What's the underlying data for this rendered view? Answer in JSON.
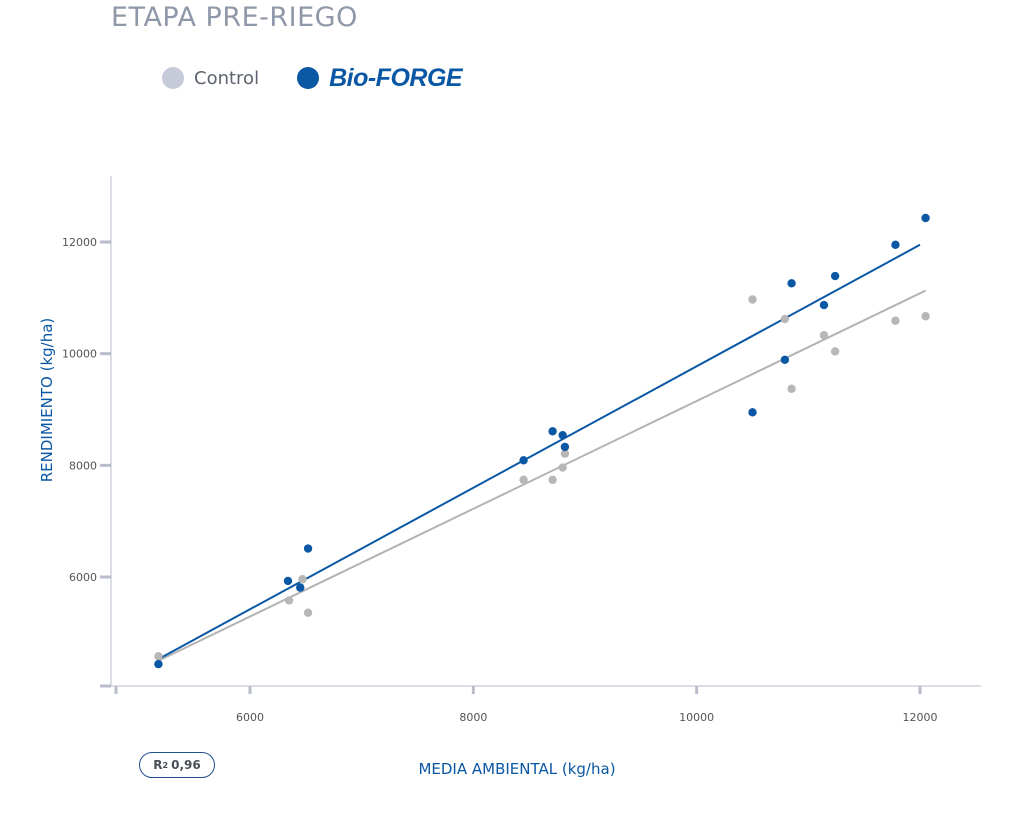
{
  "title": "ETAPA PRE-RIEGO",
  "legend": [
    {
      "label": "Control",
      "color": "#c7cad9"
    },
    {
      "label": "Bio-FORGE",
      "color": "#0a57a4"
    }
  ],
  "badge": {
    "label": "R",
    "sup": "2",
    "value": "0,96"
  },
  "colors": {
    "axis": "#b9bccb",
    "control_line": "#b3b3b3",
    "control_point": "#b7b7b7",
    "bioforge": "#0a57a4"
  },
  "chart_data": {
    "type": "scatter",
    "xlabel": "MEDIA AMBIENTAL (kg/ha)",
    "ylabel": "RENDIMIENTO (kg/ha)",
    "xlim": [
      4950,
      12650
    ],
    "ylim": [
      4500,
      13000
    ],
    "xticks": [
      6000,
      8000,
      10000,
      12000
    ],
    "yticks": [
      6000,
      8000,
      10000,
      12000
    ],
    "x_tick_labels": [
      "6000",
      "8000",
      "10000",
      "12000"
    ],
    "y_tick_labels": [
      "6000",
      "8000",
      "10000",
      "12000"
    ],
    "grid": false,
    "series": [
      {
        "name": "Control",
        "points": [
          [
            5180,
            4580
          ],
          [
            6350,
            5580
          ],
          [
            6470,
            5960
          ],
          [
            6520,
            5360
          ],
          [
            8450,
            7740
          ],
          [
            8710,
            7740
          ],
          [
            8800,
            7960
          ],
          [
            8820,
            8210
          ],
          [
            10500,
            10970
          ],
          [
            10790,
            10620
          ],
          [
            10850,
            9370
          ],
          [
            11140,
            10330
          ],
          [
            11240,
            10040
          ],
          [
            11780,
            10590
          ],
          [
            12050,
            10670
          ]
        ],
        "trend": [
          [
            5180,
            4500
          ],
          [
            12050,
            11130
          ]
        ]
      },
      {
        "name": "Bio-FORGE",
        "points": [
          [
            5180,
            4440
          ],
          [
            6340,
            5930
          ],
          [
            6450,
            5810
          ],
          [
            6520,
            6510
          ],
          [
            8450,
            8090
          ],
          [
            8710,
            8610
          ],
          [
            8800,
            8540
          ],
          [
            8820,
            8330
          ],
          [
            10500,
            8950
          ],
          [
            10790,
            9890
          ],
          [
            10850,
            11260
          ],
          [
            11140,
            10870
          ],
          [
            11240,
            11390
          ],
          [
            11780,
            11950
          ],
          [
            12050,
            12430
          ]
        ],
        "trend": [
          [
            5180,
            4530
          ],
          [
            12000,
            11950
          ]
        ]
      }
    ]
  }
}
